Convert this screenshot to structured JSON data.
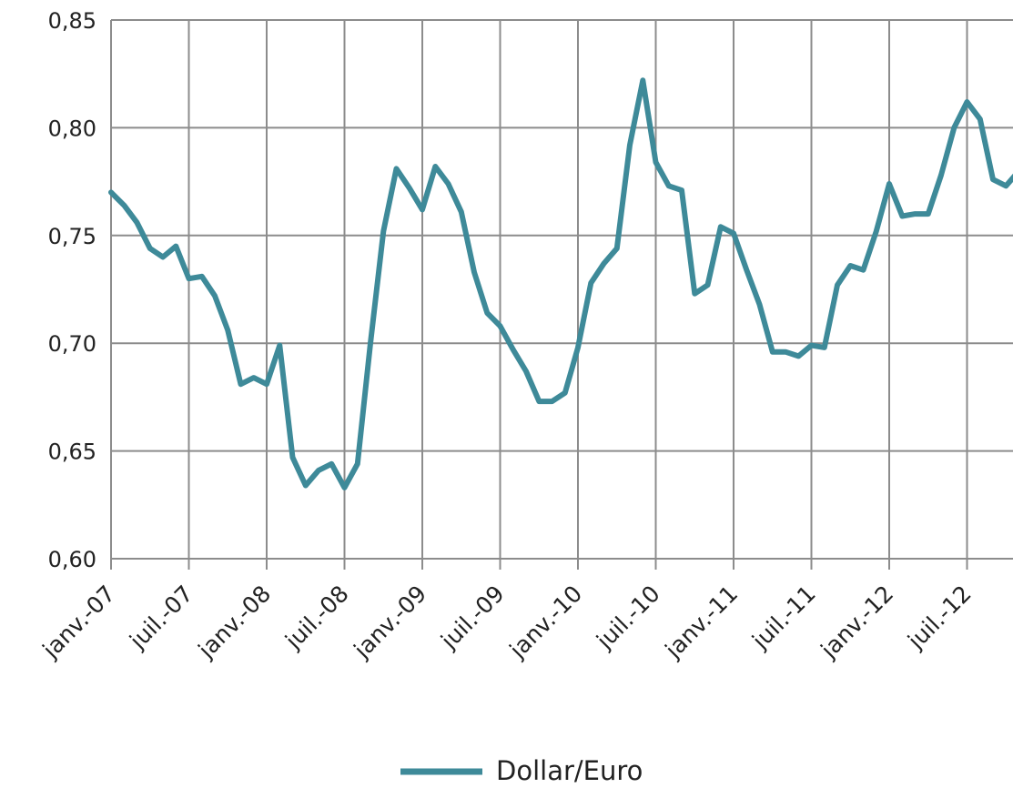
{
  "chart_data": {
    "type": "line",
    "title": "",
    "xlabel": "",
    "ylabel": "",
    "ylim": [
      0.6,
      0.85
    ],
    "y_ticks": [
      "0,60",
      "0,65",
      "0,70",
      "0,75",
      "0,80",
      "0,85"
    ],
    "x_tick_labels": [
      "janv.-07",
      "juil.-07",
      "janv.-08",
      "juil.-08",
      "janv.-09",
      "juil.-09",
      "janv.-10",
      "juil.-10",
      "janv.-11",
      "juil.-11",
      "janv.-12",
      "juil.-12"
    ],
    "grid": true,
    "legend_position": "bottom",
    "colors": {
      "series": "#3e8a99",
      "grid": "#8c8c8c",
      "text": "#222222"
    },
    "series": [
      {
        "name": "Dollar/Euro",
        "x": [
          "2007-01",
          "2007-02",
          "2007-03",
          "2007-04",
          "2007-05",
          "2007-06",
          "2007-07",
          "2007-08",
          "2007-09",
          "2007-10",
          "2007-11",
          "2007-12",
          "2008-01",
          "2008-02",
          "2008-03",
          "2008-04",
          "2008-05",
          "2008-06",
          "2008-07",
          "2008-08",
          "2008-09",
          "2008-10",
          "2008-11",
          "2008-12",
          "2009-01",
          "2009-02",
          "2009-03",
          "2009-04",
          "2009-05",
          "2009-06",
          "2009-07",
          "2009-08",
          "2009-09",
          "2009-10",
          "2009-11",
          "2009-12",
          "2010-01",
          "2010-02",
          "2010-03",
          "2010-04",
          "2010-05",
          "2010-06",
          "2010-07",
          "2010-08",
          "2010-09",
          "2010-10",
          "2010-11",
          "2010-12",
          "2011-01",
          "2011-02",
          "2011-03",
          "2011-04",
          "2011-05",
          "2011-06",
          "2011-07",
          "2011-08",
          "2011-09",
          "2011-10",
          "2011-11",
          "2011-12",
          "2012-01",
          "2012-02",
          "2012-03",
          "2012-04",
          "2012-05",
          "2012-06",
          "2012-07",
          "2012-08",
          "2012-09",
          "2012-10",
          "2012-11"
        ],
        "values": [
          0.77,
          0.764,
          0.756,
          0.744,
          0.74,
          0.745,
          0.73,
          0.731,
          0.722,
          0.706,
          0.681,
          0.684,
          0.681,
          0.699,
          0.647,
          0.634,
          0.641,
          0.644,
          0.633,
          0.644,
          0.7,
          0.752,
          0.781,
          0.772,
          0.762,
          0.782,
          0.774,
          0.761,
          0.733,
          0.714,
          0.708,
          0.697,
          0.687,
          0.673,
          0.673,
          0.677,
          0.698,
          0.728,
          0.737,
          0.744,
          0.792,
          0.822,
          0.784,
          0.773,
          0.771,
          0.723,
          0.727,
          0.754,
          0.751,
          0.734,
          0.718,
          0.696,
          0.696,
          0.694,
          0.699,
          0.698,
          0.727,
          0.736,
          0.734,
          0.752,
          0.774,
          0.759,
          0.76,
          0.76,
          0.778,
          0.8,
          0.812,
          0.804,
          0.776,
          0.773,
          0.78
        ]
      }
    ]
  }
}
